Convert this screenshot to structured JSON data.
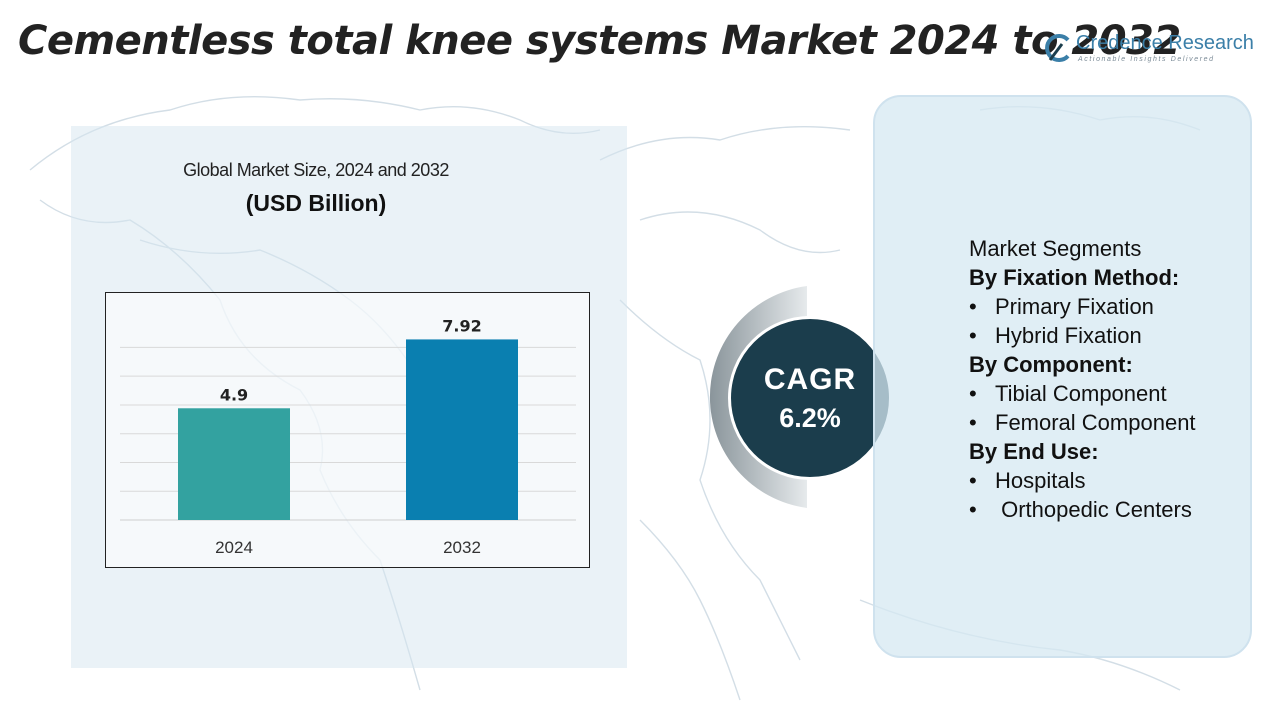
{
  "title": "Cementless total knee systems Market 2024 to 2032",
  "logo": {
    "name": "Credence Research",
    "tagline": "Actionable Insights Delivered"
  },
  "chart_data": {
    "type": "bar",
    "title": "Global Market Size, 2024 and 2032",
    "subtitle": "(USD Billion)",
    "categories": [
      "2024",
      "2032"
    ],
    "values": [
      4.9,
      7.92
    ],
    "data_labels": [
      "4.9",
      "7.92"
    ],
    "colors": [
      "#33a2a0",
      "#0a7fb0"
    ],
    "ylim": [
      0,
      10
    ],
    "grid": true
  },
  "cagr": {
    "label": "CAGR",
    "value": "6.2%"
  },
  "segments": {
    "heading": "Market Segments",
    "groups": [
      {
        "title": "By Fixation Method:",
        "items": [
          "Primary Fixation",
          "Hybrid Fixation"
        ]
      },
      {
        "title": "By Component:",
        "items": [
          "Tibial Component",
          "Femoral Component"
        ]
      },
      {
        "title": "By End Use:",
        "items": [
          "Hospitals",
          " Orthopedic Centers"
        ]
      }
    ]
  },
  "colors": {
    "cagr_circle": "#1b3d4c",
    "panel": "#d6e8f2",
    "logo": "#3b7fa8"
  }
}
